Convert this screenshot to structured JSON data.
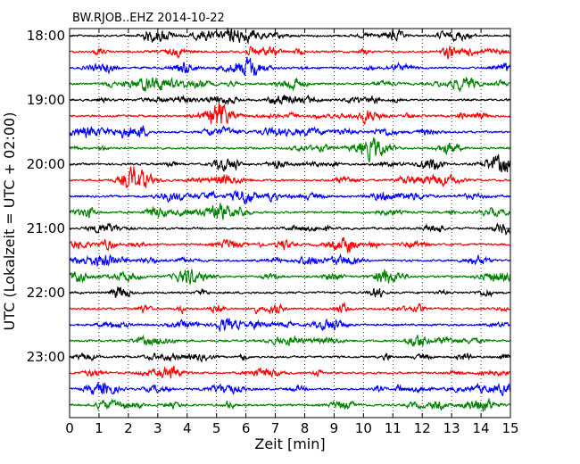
{
  "chart_data": {
    "type": "line",
    "title": "BW.RJOB..EHZ 2014-10-22",
    "xlabel": "Zeit  [min]",
    "ylabel": "UTC (Lokalzeit = UTC + 02:00)",
    "xlim": [
      0,
      15
    ],
    "x_ticks": [
      "0",
      "1",
      "2",
      "3",
      "4",
      "5",
      "6",
      "7",
      "8",
      "9",
      "10",
      "11",
      "12",
      "13",
      "14",
      "15"
    ],
    "y_ticks": [
      "18:00",
      "19:00",
      "20:00",
      "21:00",
      "22:00",
      "23:00"
    ],
    "grid": "vertical dotted lines at each minute",
    "traces_per_hour": 4,
    "trace_start_times": [
      "18:00",
      "18:15",
      "18:30",
      "18:45",
      "19:00",
      "19:15",
      "19:30",
      "19:45",
      "20:00",
      "20:15",
      "20:30",
      "20:45",
      "21:00",
      "21:15",
      "21:30",
      "21:45",
      "22:00",
      "22:15",
      "22:30",
      "22:45",
      "23:00",
      "23:15",
      "23:30",
      "23:45"
    ],
    "color_cycle": [
      "#000000",
      "#ff0000",
      "#0000ff",
      "#008000"
    ]
  }
}
